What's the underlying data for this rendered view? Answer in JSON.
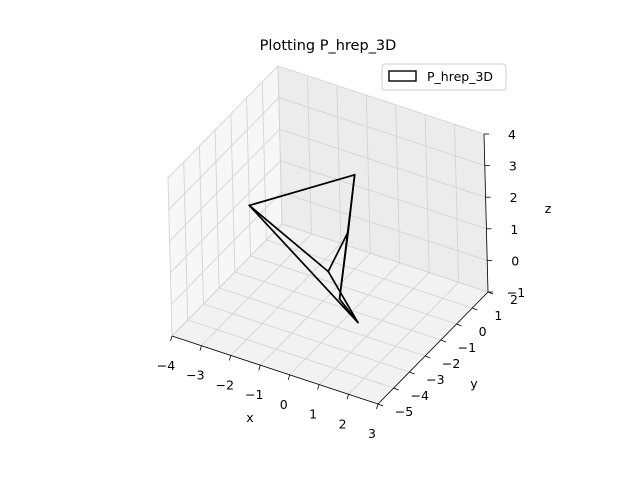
{
  "chart_data": {
    "type": "3d-polytope",
    "title": "Plotting P_hrep_3D",
    "xlabel": "x",
    "ylabel": "y",
    "zlabel": "z",
    "xlim": [
      -4,
      3
    ],
    "ylim": [
      -5,
      2
    ],
    "zlim": [
      -1,
      4
    ],
    "x_ticks": [
      "−4",
      "−3",
      "−2",
      "−1",
      "0",
      "1",
      "2",
      "3"
    ],
    "y_ticks": [
      "−5",
      "−4",
      "−3",
      "−2",
      "−1",
      "0",
      "1",
      "2"
    ],
    "z_ticks": [
      "−1",
      "0",
      "1",
      "2",
      "3",
      "4"
    ],
    "legend": {
      "label": "P_hrep_3D",
      "placement": "top-right"
    },
    "grid": true,
    "edge_color": "#000000",
    "face_color": "none",
    "vertices": [
      [
        -4.0,
        0.0,
        0.6
      ],
      [
        1.0,
        -2.5,
        -0.3
      ],
      [
        -0.8,
        -1.0,
        0.0
      ],
      [
        1.0,
        -3.6,
        1.0
      ],
      [
        0.3,
        -1.2,
        3.5
      ],
      [
        -0.8,
        0.3,
        0.6
      ]
    ],
    "edges": [
      [
        0,
        2
      ],
      [
        0,
        1
      ],
      [
        2,
        1
      ],
      [
        0,
        4
      ],
      [
        4,
        5
      ],
      [
        4,
        3
      ],
      [
        5,
        3
      ],
      [
        5,
        2
      ],
      [
        3,
        1
      ]
    ]
  }
}
